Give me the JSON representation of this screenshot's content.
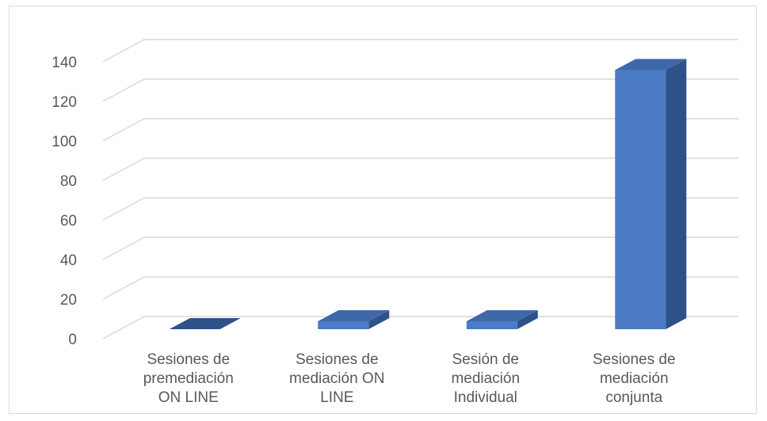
{
  "chart_data": {
    "type": "bar",
    "style": "3d-column",
    "categories": [
      [
        "Sesiones de",
        "premediación",
        "ON LINE"
      ],
      [
        "Sesiones de",
        "mediación ON",
        "LINE"
      ],
      [
        "Sesión de",
        "mediación",
        "Individual"
      ],
      [
        "Sesiones de",
        "mediación",
        "conjunta"
      ]
    ],
    "values": [
      0,
      4,
      4,
      131
    ],
    "ylim": [
      0,
      140
    ],
    "yticks": [
      "0",
      "20",
      "40",
      "60",
      "80",
      "100",
      "120",
      "140"
    ],
    "title": "",
    "xlabel": "",
    "ylabel": "",
    "grid": true,
    "legend": "none",
    "colors": {
      "bar_front": "#4a7bc4",
      "bar_top": "#3e68a8",
      "bar_side": "#2e5189",
      "grid": "#d9d9d9",
      "text": "#595959"
    }
  }
}
